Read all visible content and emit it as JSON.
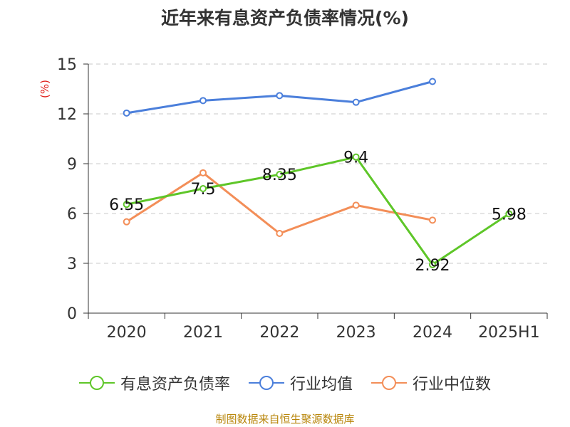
{
  "title": "近年来有息资产负债率情况(%)",
  "source": "制图数据来自恒生聚源数据库",
  "chart_data": {
    "type": "line",
    "ylabel": "(%)",
    "ylim": [
      0,
      15
    ],
    "yticks": [
      0,
      3,
      6,
      9,
      12,
      15
    ],
    "categories": [
      "2020",
      "2021",
      "2022",
      "2023",
      "2024",
      "2025H1"
    ],
    "grid": true,
    "legend_position": "bottom",
    "series": [
      {
        "name": "有息资产负债率",
        "color": "#5ec628",
        "values": [
          6.55,
          7.5,
          8.35,
          9.4,
          2.92,
          5.98
        ],
        "labels": [
          "6.55",
          "7.5",
          "8.35",
          "9.4",
          "2.92",
          "5.98"
        ]
      },
      {
        "name": "行业均值",
        "color": "#4b7fdb",
        "values": [
          12.05,
          12.8,
          13.1,
          12.7,
          13.95,
          null
        ]
      },
      {
        "name": "行业中位数",
        "color": "#f38e58",
        "values": [
          5.5,
          8.45,
          4.8,
          6.5,
          5.6,
          null
        ]
      }
    ]
  }
}
